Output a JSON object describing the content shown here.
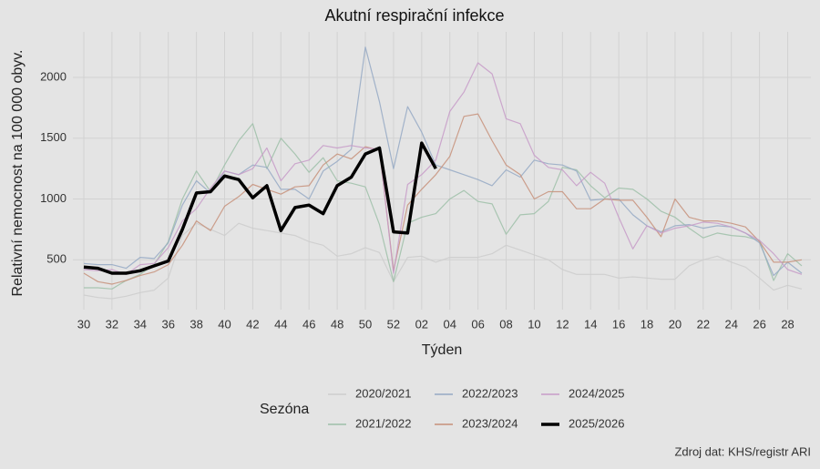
{
  "chart_data": {
    "type": "line",
    "title": "Akutní respirační infekce",
    "y_label": "Relativní nemocnost na 100 000 obyv.",
    "x_label": "Týden",
    "legend_title": "Sezóna",
    "source": "Zdroj dat: KHS/registr ARI",
    "categories": [
      "30",
      null,
      "32",
      null,
      "34",
      null,
      "36",
      null,
      "38",
      null,
      "40",
      null,
      "42",
      null,
      "44",
      null,
      "46",
      null,
      "48",
      null,
      "50",
      null,
      "52",
      null,
      "02",
      null,
      "04",
      null,
      "06",
      null,
      "08",
      null,
      "10",
      null,
      "12",
      null,
      "14",
      null,
      "16",
      null,
      "18",
      null,
      "20",
      null,
      "22",
      null,
      "24",
      null,
      "26",
      null,
      "28",
      null
    ],
    "ylim": [
      90,
      2375
    ],
    "yticks": [
      500,
      1000,
      1500,
      2000
    ],
    "grid": true,
    "series": [
      {
        "name": "2020/2021",
        "color": "#cdcdcd",
        "values": [
          210,
          190,
          180,
          200,
          230,
          250,
          350,
          700,
          800,
          750,
          700,
          800,
          760,
          740,
          720,
          700,
          650,
          620,
          530,
          550,
          600,
          560,
          320,
          520,
          530,
          480,
          520,
          520,
          520,
          550,
          620,
          580,
          540,
          500,
          420,
          380,
          380,
          380,
          350,
          360,
          350,
          340,
          340,
          450,
          500,
          530,
          480,
          440,
          350,
          250,
          290,
          260
        ]
      },
      {
        "name": "2021/2022",
        "color": "#9dbfa8",
        "values": [
          270,
          270,
          260,
          330,
          380,
          460,
          650,
          1000,
          1230,
          1060,
          1280,
          1480,
          1620,
          1250,
          1500,
          1370,
          1220,
          1340,
          1150,
          1130,
          1100,
          790,
          320,
          800,
          850,
          880,
          1000,
          1070,
          980,
          960,
          710,
          870,
          880,
          980,
          1260,
          1240,
          1110,
          1010,
          1090,
          1080,
          1000,
          900,
          850,
          760,
          680,
          720,
          700,
          690,
          660,
          330,
          550,
          450
        ]
      },
      {
        "name": "2022/2023",
        "color": "#95a9c4",
        "values": [
          470,
          460,
          460,
          430,
          520,
          510,
          640,
          950,
          1150,
          1050,
          1230,
          1200,
          1280,
          1260,
          1080,
          1080,
          1000,
          1230,
          1310,
          1410,
          2250,
          1800,
          1250,
          1760,
          1550,
          1280,
          1240,
          1200,
          1160,
          1110,
          1240,
          1180,
          1320,
          1290,
          1280,
          1230,
          990,
          1000,
          1000,
          870,
          780,
          730,
          780,
          790,
          760,
          780,
          770,
          720,
          640,
          370,
          480,
          390
        ]
      },
      {
        "name": "2023/2024",
        "color": "#c7907a",
        "values": [
          390,
          320,
          300,
          330,
          370,
          400,
          460,
          620,
          820,
          740,
          940,
          1020,
          1120,
          1080,
          1040,
          1100,
          1110,
          1280,
          1370,
          1330,
          1430,
          1400,
          410,
          950,
          1080,
          1200,
          1350,
          1680,
          1700,
          1480,
          1280,
          1200,
          1000,
          1060,
          1060,
          920,
          920,
          1000,
          990,
          990,
          850,
          690,
          1000,
          850,
          820,
          820,
          800,
          770,
          650,
          480,
          480,
          500
        ]
      },
      {
        "name": "2024/2025",
        "color": "#c79bc8",
        "values": [
          420,
          410,
          420,
          380,
          460,
          470,
          600,
          820,
          920,
          1090,
          1230,
          1200,
          1250,
          1420,
          1150,
          1290,
          1320,
          1440,
          1420,
          1440,
          1420,
          1410,
          390,
          1120,
          1200,
          1320,
          1720,
          1880,
          2120,
          2030,
          1660,
          1620,
          1360,
          1260,
          1240,
          1110,
          1220,
          1130,
          850,
          590,
          780,
          720,
          760,
          780,
          810,
          800,
          770,
          720,
          660,
          550,
          420,
          380
        ]
      },
      {
        "name": "2025/2026",
        "color": "#000000",
        "values": [
          440,
          430,
          390,
          390,
          410,
          450,
          490,
          750,
          1050,
          1060,
          1190,
          1160,
          1010,
          1110,
          740,
          930,
          950,
          880,
          1110,
          1180,
          1370,
          1420,
          730,
          720,
          1460,
          1250,
          null,
          null,
          null,
          null,
          null,
          null,
          null,
          null,
          null,
          null,
          null,
          null,
          null,
          null,
          null,
          null,
          null,
          null,
          null,
          null,
          null,
          null,
          null,
          null,
          null,
          null
        ]
      }
    ]
  }
}
